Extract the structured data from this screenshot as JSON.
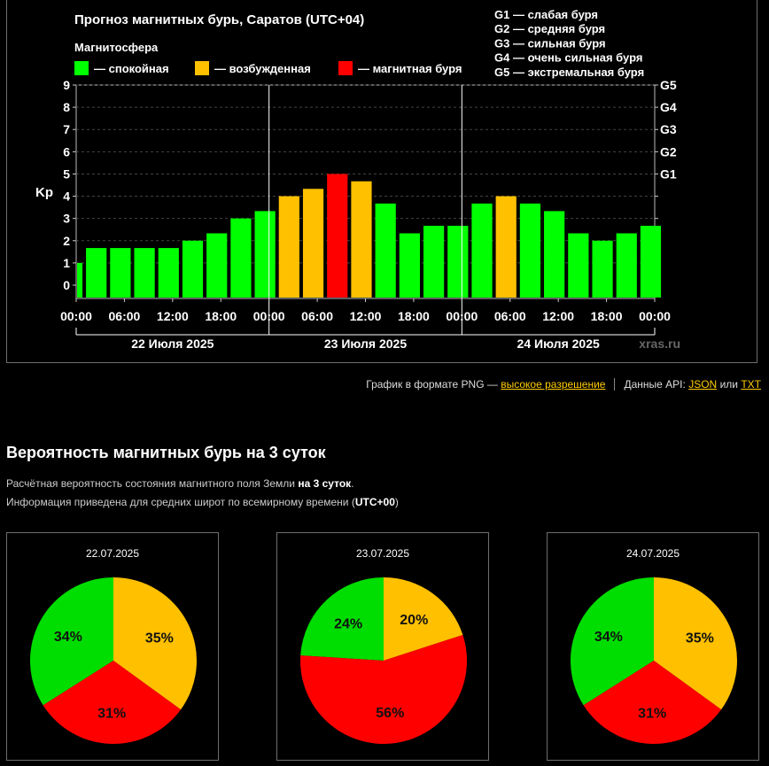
{
  "header": {
    "title": "Прогноз магнитных бурь, Саратов (UTC+04)",
    "legend_title": "Магнитосфера",
    "legend": [
      {
        "label": "— спокойная",
        "color": "#00ff00"
      },
      {
        "label": "— возбужденная",
        "color": "#ffc000"
      },
      {
        "label": "— магнитная буря",
        "color": "#ff0000"
      }
    ],
    "storm_levels": [
      "G1 — слабая буря",
      "G2 — средняя буря",
      "G3 — сильная буря",
      "G4 — очень сильная буря",
      "G5 — экстремальная буря"
    ],
    "watermark": "xras.ru"
  },
  "chart_data": {
    "type": "bar",
    "ylabel": "Kp",
    "ylim": [
      0,
      9
    ],
    "y_ticks": [
      "0",
      "1",
      "2",
      "3",
      "4",
      "5",
      "6",
      "7",
      "8",
      "9"
    ],
    "right_ticks": [
      {
        "y": 5,
        "label": "G1"
      },
      {
        "y": 6,
        "label": "G2"
      },
      {
        "y": 7,
        "label": "G3"
      },
      {
        "y": 8,
        "label": "G4"
      },
      {
        "y": 9,
        "label": "G5"
      }
    ],
    "x_ticks": [
      "00:00",
      "06:00",
      "12:00",
      "18:00",
      "00:00",
      "06:00",
      "12:00",
      "18:00",
      "00:00",
      "06:00",
      "12:00",
      "18:00",
      "00:00"
    ],
    "days": [
      "22 Июля 2025",
      "23 Июля 2025",
      "24 Июля 2025"
    ],
    "first_bar_hours": 1,
    "bar_hours": 3,
    "values": [
      1.0,
      1.67,
      1.67,
      1.67,
      1.67,
      2.0,
      2.33,
      3.0,
      3.33,
      4.0,
      4.33,
      5.0,
      4.67,
      3.67,
      2.33,
      2.67,
      2.67,
      3.67,
      4.0,
      3.67,
      3.33,
      2.33,
      2.0,
      2.33,
      2.67
    ],
    "levels": [
      "quiet",
      "quiet",
      "quiet",
      "quiet",
      "quiet",
      "quiet",
      "quiet",
      "quiet",
      "quiet",
      "active",
      "active",
      "storm",
      "active",
      "quiet",
      "quiet",
      "quiet",
      "quiet",
      "quiet",
      "active",
      "quiet",
      "quiet",
      "quiet",
      "quiet",
      "quiet",
      "quiet"
    ],
    "colors": {
      "quiet": "#00ff00",
      "active": "#ffc000",
      "storm": "#ff0000"
    },
    "grid": true
  },
  "links": {
    "png_text": "График в формате PNG —",
    "png_link": "высокое разрешение",
    "api_text": "Данные API:",
    "json_link": "JSON",
    "or_text": "или",
    "txt_link": "TXT"
  },
  "probability": {
    "title": "Вероятность магнитных бурь на 3 суток",
    "desc1_pre": "Расчётная вероятность состояния магнитного поля Земли ",
    "desc1_bold": "на 3 суток",
    "desc1_post": ".",
    "desc2_pre": "Информация приведена для средних широт по всемирному времени (",
    "desc2_bold": "UTC+00",
    "desc2_post": ")",
    "pies": [
      {
        "date": "22.07.2025",
        "quiet": 34,
        "active": 35,
        "storm": 31,
        "labels": {
          "quiet": "34%",
          "active": "35%",
          "storm": "31%"
        }
      },
      {
        "date": "23.07.2025",
        "quiet": 24,
        "active": 20,
        "storm": 56,
        "labels": {
          "quiet": "24%",
          "active": "20%",
          "storm": "56%"
        }
      },
      {
        "date": "24.07.2025",
        "quiet": 34,
        "active": 35,
        "storm": 31,
        "labels": {
          "quiet": "34%",
          "active": "35%",
          "storm": "31%"
        }
      }
    ]
  }
}
